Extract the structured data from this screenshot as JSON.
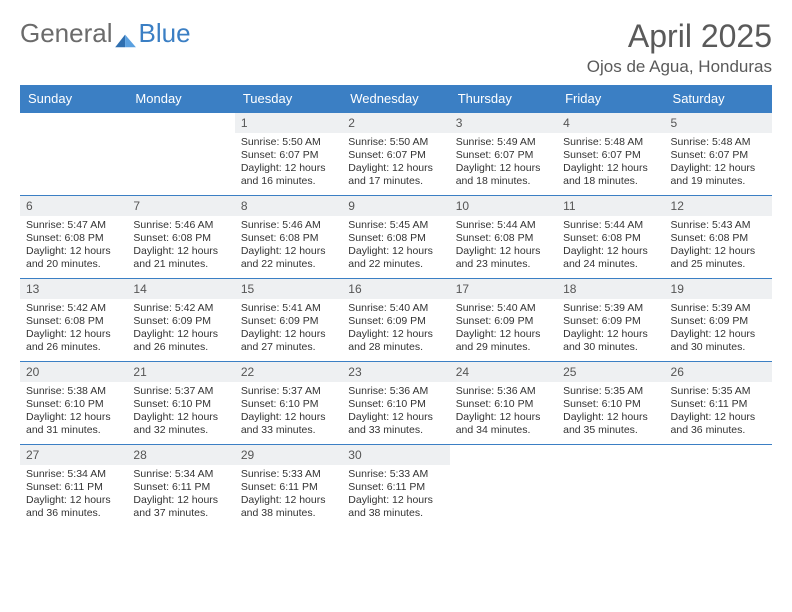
{
  "brand": {
    "text1": "General",
    "text2": "Blue"
  },
  "title": "April 2025",
  "location": "Ojos de Agua, Honduras",
  "colors": {
    "header_bg": "#3b7fc4",
    "header_text": "#ffffff",
    "daynum_bg": "#eef0f2",
    "rule": "#3b7fc4",
    "text": "#333333",
    "title_text": "#5a5a5a"
  },
  "fonts": {
    "title_size": 32,
    "location_size": 17,
    "header_size": 13,
    "body_size": 10.5
  },
  "day_headers": [
    "Sunday",
    "Monday",
    "Tuesday",
    "Wednesday",
    "Thursday",
    "Friday",
    "Saturday"
  ],
  "weeks": [
    [
      null,
      null,
      {
        "n": "1",
        "sunrise": "Sunrise: 5:50 AM",
        "sunset": "Sunset: 6:07 PM",
        "day": "Daylight: 12 hours and 16 minutes."
      },
      {
        "n": "2",
        "sunrise": "Sunrise: 5:50 AM",
        "sunset": "Sunset: 6:07 PM",
        "day": "Daylight: 12 hours and 17 minutes."
      },
      {
        "n": "3",
        "sunrise": "Sunrise: 5:49 AM",
        "sunset": "Sunset: 6:07 PM",
        "day": "Daylight: 12 hours and 18 minutes."
      },
      {
        "n": "4",
        "sunrise": "Sunrise: 5:48 AM",
        "sunset": "Sunset: 6:07 PM",
        "day": "Daylight: 12 hours and 18 minutes."
      },
      {
        "n": "5",
        "sunrise": "Sunrise: 5:48 AM",
        "sunset": "Sunset: 6:07 PM",
        "day": "Daylight: 12 hours and 19 minutes."
      }
    ],
    [
      {
        "n": "6",
        "sunrise": "Sunrise: 5:47 AM",
        "sunset": "Sunset: 6:08 PM",
        "day": "Daylight: 12 hours and 20 minutes."
      },
      {
        "n": "7",
        "sunrise": "Sunrise: 5:46 AM",
        "sunset": "Sunset: 6:08 PM",
        "day": "Daylight: 12 hours and 21 minutes."
      },
      {
        "n": "8",
        "sunrise": "Sunrise: 5:46 AM",
        "sunset": "Sunset: 6:08 PM",
        "day": "Daylight: 12 hours and 22 minutes."
      },
      {
        "n": "9",
        "sunrise": "Sunrise: 5:45 AM",
        "sunset": "Sunset: 6:08 PM",
        "day": "Daylight: 12 hours and 22 minutes."
      },
      {
        "n": "10",
        "sunrise": "Sunrise: 5:44 AM",
        "sunset": "Sunset: 6:08 PM",
        "day": "Daylight: 12 hours and 23 minutes."
      },
      {
        "n": "11",
        "sunrise": "Sunrise: 5:44 AM",
        "sunset": "Sunset: 6:08 PM",
        "day": "Daylight: 12 hours and 24 minutes."
      },
      {
        "n": "12",
        "sunrise": "Sunrise: 5:43 AM",
        "sunset": "Sunset: 6:08 PM",
        "day": "Daylight: 12 hours and 25 minutes."
      }
    ],
    [
      {
        "n": "13",
        "sunrise": "Sunrise: 5:42 AM",
        "sunset": "Sunset: 6:08 PM",
        "day": "Daylight: 12 hours and 26 minutes."
      },
      {
        "n": "14",
        "sunrise": "Sunrise: 5:42 AM",
        "sunset": "Sunset: 6:09 PM",
        "day": "Daylight: 12 hours and 26 minutes."
      },
      {
        "n": "15",
        "sunrise": "Sunrise: 5:41 AM",
        "sunset": "Sunset: 6:09 PM",
        "day": "Daylight: 12 hours and 27 minutes."
      },
      {
        "n": "16",
        "sunrise": "Sunrise: 5:40 AM",
        "sunset": "Sunset: 6:09 PM",
        "day": "Daylight: 12 hours and 28 minutes."
      },
      {
        "n": "17",
        "sunrise": "Sunrise: 5:40 AM",
        "sunset": "Sunset: 6:09 PM",
        "day": "Daylight: 12 hours and 29 minutes."
      },
      {
        "n": "18",
        "sunrise": "Sunrise: 5:39 AM",
        "sunset": "Sunset: 6:09 PM",
        "day": "Daylight: 12 hours and 30 minutes."
      },
      {
        "n": "19",
        "sunrise": "Sunrise: 5:39 AM",
        "sunset": "Sunset: 6:09 PM",
        "day": "Daylight: 12 hours and 30 minutes."
      }
    ],
    [
      {
        "n": "20",
        "sunrise": "Sunrise: 5:38 AM",
        "sunset": "Sunset: 6:10 PM",
        "day": "Daylight: 12 hours and 31 minutes."
      },
      {
        "n": "21",
        "sunrise": "Sunrise: 5:37 AM",
        "sunset": "Sunset: 6:10 PM",
        "day": "Daylight: 12 hours and 32 minutes."
      },
      {
        "n": "22",
        "sunrise": "Sunrise: 5:37 AM",
        "sunset": "Sunset: 6:10 PM",
        "day": "Daylight: 12 hours and 33 minutes."
      },
      {
        "n": "23",
        "sunrise": "Sunrise: 5:36 AM",
        "sunset": "Sunset: 6:10 PM",
        "day": "Daylight: 12 hours and 33 minutes."
      },
      {
        "n": "24",
        "sunrise": "Sunrise: 5:36 AM",
        "sunset": "Sunset: 6:10 PM",
        "day": "Daylight: 12 hours and 34 minutes."
      },
      {
        "n": "25",
        "sunrise": "Sunrise: 5:35 AM",
        "sunset": "Sunset: 6:10 PM",
        "day": "Daylight: 12 hours and 35 minutes."
      },
      {
        "n": "26",
        "sunrise": "Sunrise: 5:35 AM",
        "sunset": "Sunset: 6:11 PM",
        "day": "Daylight: 12 hours and 36 minutes."
      }
    ],
    [
      {
        "n": "27",
        "sunrise": "Sunrise: 5:34 AM",
        "sunset": "Sunset: 6:11 PM",
        "day": "Daylight: 12 hours and 36 minutes."
      },
      {
        "n": "28",
        "sunrise": "Sunrise: 5:34 AM",
        "sunset": "Sunset: 6:11 PM",
        "day": "Daylight: 12 hours and 37 minutes."
      },
      {
        "n": "29",
        "sunrise": "Sunrise: 5:33 AM",
        "sunset": "Sunset: 6:11 PM",
        "day": "Daylight: 12 hours and 38 minutes."
      },
      {
        "n": "30",
        "sunrise": "Sunrise: 5:33 AM",
        "sunset": "Sunset: 6:11 PM",
        "day": "Daylight: 12 hours and 38 minutes."
      },
      null,
      null,
      null
    ]
  ]
}
